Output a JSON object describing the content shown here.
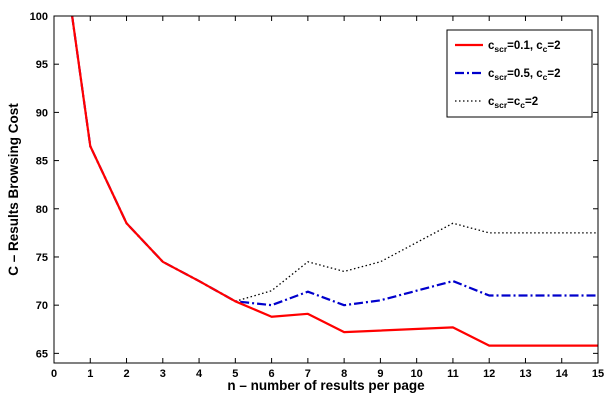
{
  "chart_data": {
    "type": "line",
    "xlabel": "n – number of results per page",
    "ylabel": "C – Results Browsing Cost",
    "xlim": [
      0,
      15
    ],
    "ylim": [
      64,
      100
    ],
    "xticks": [
      0,
      1,
      2,
      3,
      4,
      5,
      6,
      7,
      8,
      9,
      10,
      11,
      12,
      13,
      14,
      15
    ],
    "yticks": [
      65,
      70,
      75,
      80,
      85,
      90,
      95,
      100
    ],
    "grid": false,
    "legend_position": "top-right",
    "series": [
      {
        "name_base": "c",
        "name_sub1": "scr",
        "name_mid": "=0.1, c",
        "name_sub2": "c",
        "name_end": "=2",
        "color": "#ff0000",
        "style": "solid",
        "x": [
          0.5,
          1,
          2,
          3,
          4,
          5,
          6,
          7,
          8,
          11,
          12,
          15
        ],
        "y": [
          100,
          86.5,
          78.5,
          74.5,
          72.5,
          70.4,
          68.8,
          69.1,
          67.2,
          67.7,
          65.8,
          65.8
        ]
      },
      {
        "name_base": "c",
        "name_sub1": "scr",
        "name_mid": "=0.5, c",
        "name_sub2": "c",
        "name_end": "=2",
        "color": "#0000cc",
        "style": "dashdot",
        "x": [
          0.5,
          1,
          2,
          3,
          4,
          5,
          6,
          7,
          8,
          9,
          11,
          12,
          15
        ],
        "y": [
          100,
          86.5,
          78.5,
          74.5,
          72.5,
          70.4,
          70.0,
          71.4,
          70.0,
          70.5,
          72.5,
          71.0,
          71.0
        ]
      },
      {
        "name_base": "c",
        "name_sub1": "scr",
        "name_mid": "=c",
        "name_sub2": "c",
        "name_end": "=2",
        "color": "#000000",
        "style": "dotted",
        "x": [
          0.5,
          1,
          2,
          3,
          4,
          5,
          6,
          7,
          8,
          9,
          10,
          11,
          12,
          15
        ],
        "y": [
          100,
          86.5,
          78.5,
          74.5,
          72.5,
          70.4,
          71.5,
          74.5,
          73.5,
          74.5,
          76.5,
          78.5,
          77.5,
          77.5
        ]
      }
    ]
  }
}
